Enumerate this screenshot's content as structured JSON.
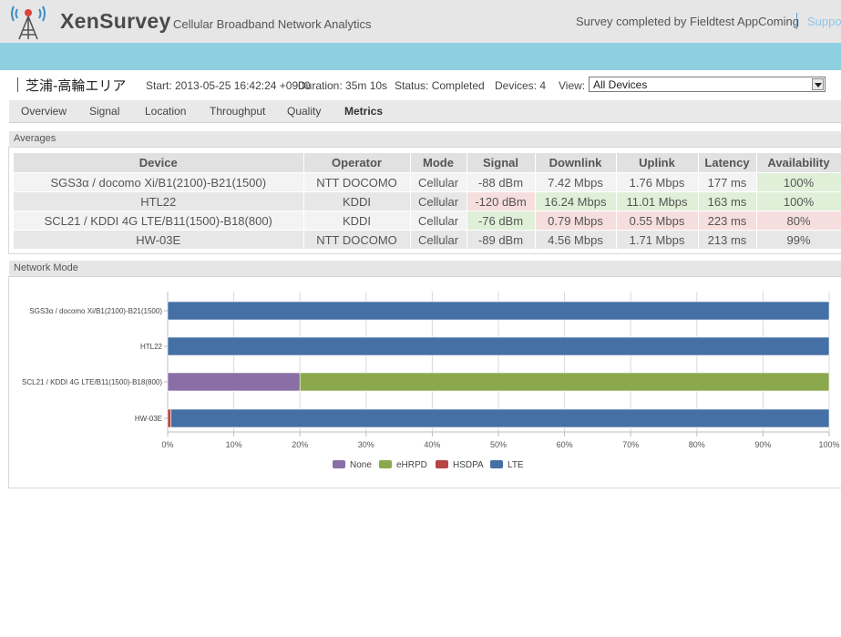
{
  "header": {
    "brand": "XenSurvey",
    "tagline": "Cellular Broadband Network Analytics",
    "survey_by": "Survey completed by Fieldtest AppComing",
    "support_link": "Support",
    "logo_icon": "antenna-tower-icon"
  },
  "info": {
    "area_name": "芝浦-高輪エリア",
    "start": "Start: 2013-05-25 16:42:24 +0900",
    "duration": "Duration: 35m 10s",
    "status": "Status: Completed",
    "devices": "Devices: 4",
    "view_label": "View:",
    "view_value": "All Devices"
  },
  "tabs": [
    {
      "label": "Overview",
      "active": false
    },
    {
      "label": "Signal",
      "active": false
    },
    {
      "label": "Location",
      "active": false
    },
    {
      "label": "Throughput",
      "active": false
    },
    {
      "label": "Quality",
      "active": false
    },
    {
      "label": "Metrics",
      "active": true
    }
  ],
  "averages": {
    "title": "Averages",
    "columns": [
      "Device",
      "Operator",
      "Mode",
      "Signal",
      "Downlink",
      "Uplink",
      "Latency",
      "Availability"
    ],
    "rows": [
      {
        "device": "SGS3α / docomo Xi/B1(2100)-B21(1500)",
        "operator": "NTT DOCOMO",
        "mode": "Cellular",
        "signal": "-88 dBm",
        "downlink": "7.42 Mbps",
        "uplink": "1.76 Mbps",
        "latency": "177 ms",
        "availability": "100%",
        "status": {
          "signal": "",
          "downlink": "",
          "uplink": "",
          "latency": "",
          "availability": "good"
        }
      },
      {
        "device": "HTL22",
        "operator": "KDDI",
        "mode": "Cellular",
        "signal": "-120 dBm",
        "downlink": "16.24 Mbps",
        "uplink": "11.01 Mbps",
        "latency": "163 ms",
        "availability": "100%",
        "status": {
          "signal": "bad",
          "downlink": "good",
          "uplink": "good",
          "latency": "good",
          "availability": "good"
        }
      },
      {
        "device": "SCL21 / KDDI 4G LTE/B11(1500)-B18(800)",
        "operator": "KDDI",
        "mode": "Cellular",
        "signal": "-76 dBm",
        "downlink": "0.79 Mbps",
        "uplink": "0.55 Mbps",
        "latency": "223 ms",
        "availability": "80%",
        "status": {
          "signal": "good",
          "downlink": "bad",
          "uplink": "bad",
          "latency": "bad",
          "availability": "bad"
        }
      },
      {
        "device": "HW-03E",
        "operator": "NTT DOCOMO",
        "mode": "Cellular",
        "signal": "-89 dBm",
        "downlink": "4.56 Mbps",
        "uplink": "1.71 Mbps",
        "latency": "213 ms",
        "availability": "99%",
        "status": {
          "signal": "",
          "downlink": "",
          "uplink": "",
          "latency": "",
          "availability": ""
        }
      }
    ],
    "status_colors": {
      "good": "#e0f0d8",
      "bad": "#f7dede"
    }
  },
  "network_mode": {
    "title": "Network Mode"
  },
  "chart_data": {
    "type": "bar",
    "orientation": "horizontal",
    "stacked": true,
    "categories": [
      "SGS3α / docomo Xi/B1(2100)-B21(1500)",
      "HTL22",
      "SCL21 / KDDI 4G LTE/B11(1500)-B18(800)",
      "HW-03E"
    ],
    "category_tick_labels": [
      "SGS3α / docomo Xi/B1(2100)-B21(1500)",
      "HTL22",
      "SCL21 / KDDI 4G LTE/B11(1500)-B18(800)",
      "HW-03E"
    ],
    "series": [
      {
        "name": "None",
        "color": "#8a6fa6",
        "values": [
          0,
          0,
          20,
          0
        ]
      },
      {
        "name": "eHRPD",
        "color": "#8ba84c",
        "values": [
          0,
          0,
          80,
          0
        ]
      },
      {
        "name": "HSDPA",
        "color": "#b94444",
        "values": [
          0,
          0,
          0,
          0.5
        ]
      },
      {
        "name": "LTE",
        "color": "#4470a6",
        "values": [
          100,
          100,
          0,
          99.5
        ]
      }
    ],
    "xlim": [
      0,
      100
    ],
    "xticks": [
      "0%",
      "10%",
      "20%",
      "30%",
      "40%",
      "50%",
      "60%",
      "70%",
      "80%",
      "90%",
      "100%"
    ],
    "grid": true,
    "legend": "bottom"
  }
}
